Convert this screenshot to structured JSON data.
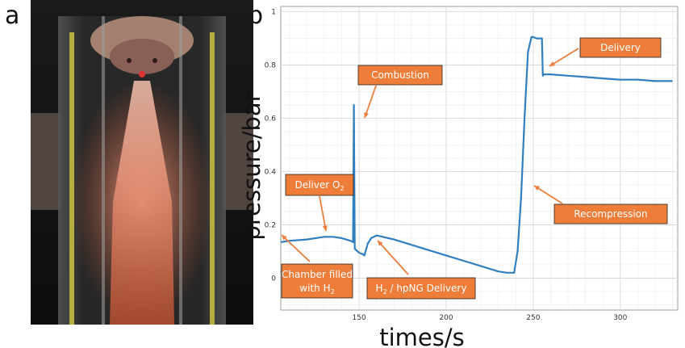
{
  "panels": {
    "a": "a",
    "b": "b"
  },
  "chart_data": {
    "type": "line",
    "xlabel": "times/s",
    "ylabel": "pressure/bar",
    "xlim": [
      105,
      333
    ],
    "ylim": [
      -0.12,
      1.02
    ],
    "xticks": [
      150,
      200,
      250,
      300
    ],
    "yticks": [
      0,
      0.2,
      0.4,
      0.6,
      0.8,
      1
    ],
    "grid": true,
    "series": [
      {
        "color": "#2f7fc1",
        "x": [
          105,
          110,
          120,
          130,
          135,
          140,
          145,
          146.5,
          147,
          147.5,
          150,
          152,
          153,
          155,
          157,
          160,
          170,
          180,
          190,
          200,
          210,
          220,
          230,
          235,
          239,
          241,
          243,
          245,
          247,
          249,
          250,
          252,
          255,
          255.5,
          256,
          260,
          270,
          280,
          290,
          300,
          310,
          320,
          330
        ],
        "y": [
          0.135,
          0.14,
          0.145,
          0.155,
          0.155,
          0.15,
          0.14,
          0.135,
          0.65,
          0.11,
          0.095,
          0.09,
          0.085,
          0.13,
          0.15,
          0.16,
          0.145,
          0.125,
          0.105,
          0.085,
          0.065,
          0.045,
          0.025,
          0.02,
          0.02,
          0.1,
          0.3,
          0.6,
          0.85,
          0.905,
          0.905,
          0.9,
          0.9,
          0.76,
          0.765,
          0.765,
          0.76,
          0.755,
          0.75,
          0.745,
          0.745,
          0.74,
          0.74
        ]
      }
    ],
    "annotations": [
      {
        "text": "Delivery",
        "sub": ""
      },
      {
        "text": "Combustion",
        "sub": ""
      },
      {
        "text": "Deliver O",
        "sub": "2"
      },
      {
        "text": "Recompression",
        "sub": ""
      },
      {
        "text": "Chamber filled",
        "line2": "with H",
        "sub": "2"
      },
      {
        "text": "H",
        "sub": "2",
        "rest": " / hpNG Delivery"
      }
    ],
    "annotation_color": "#ee7d3a"
  }
}
